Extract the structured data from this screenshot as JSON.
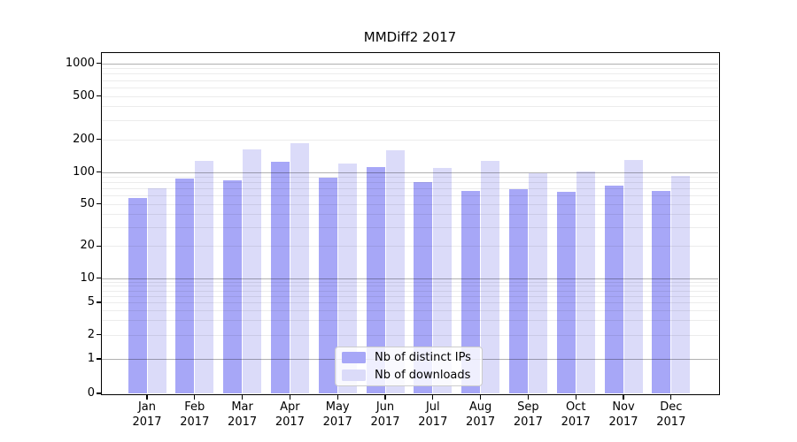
{
  "title": "MMDiff2 2017",
  "chart_data": {
    "type": "bar",
    "title": "MMDiff2 2017",
    "y_scale": "symlog",
    "grid": "on",
    "legend_position": "bottom-center",
    "categories": [
      "Jan 2017",
      "Feb 2017",
      "Mar 2017",
      "Apr 2017",
      "May 2017",
      "Jun 2017",
      "Jul 2017",
      "Aug 2017",
      "Sep 2017",
      "Oct 2017",
      "Nov 2017",
      "Dec 2017"
    ],
    "series": [
      {
        "name": "Nb of distinct IPs",
        "color": "#a7a7f7",
        "values": [
          57,
          87,
          83,
          125,
          89,
          110,
          81,
          66,
          69,
          65,
          75,
          66
        ]
      },
      {
        "name": "Nb of downloads",
        "color": "#dbdbf9",
        "values": [
          70,
          126,
          160,
          185,
          119,
          158,
          108,
          126,
          98,
          101,
          130,
          92
        ]
      }
    ],
    "yticks": [
      0,
      1,
      2,
      5,
      10,
      20,
      50,
      100,
      200,
      500,
      1000
    ],
    "ylim": [
      0,
      1240
    ],
    "xlabel": "",
    "ylabel": ""
  },
  "colors": {
    "bar_distinct_ips": "#a7a7f7",
    "bar_downloads": "#dbdbf9",
    "major_grid": "#b0b0b0",
    "minor_grid": "#ececec",
    "axis": "#000000",
    "background": "#ffffff"
  }
}
